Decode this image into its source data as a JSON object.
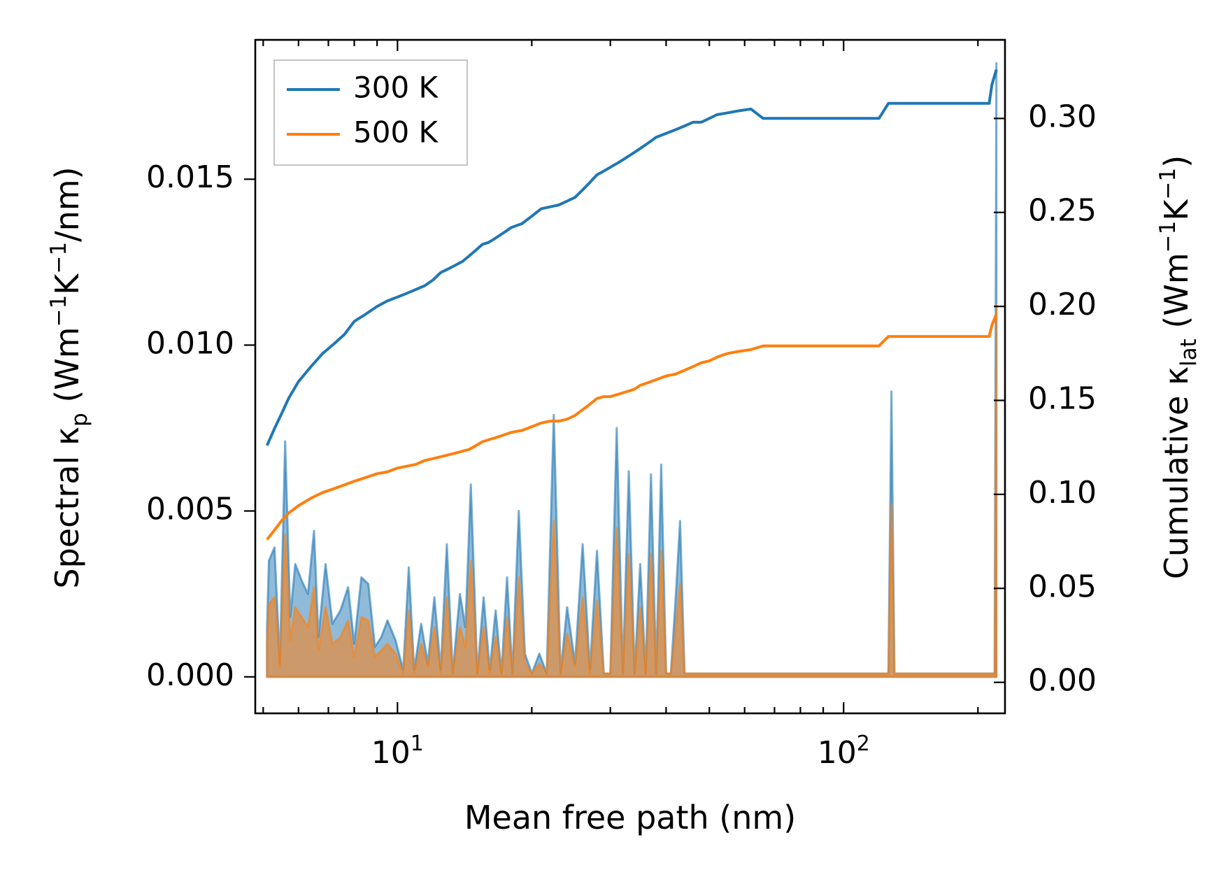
{
  "chart_data": {
    "type": "line",
    "xlabel": "Mean free path (nm)",
    "ylabel_left": {
      "prefix": "Spectral κ",
      "sub": "p",
      "units_open": " (Wm",
      "exp1": "−1",
      "units_mid": "K",
      "exp2": "−1",
      "units_close": "/nm)"
    },
    "ylabel_right": {
      "prefix": "Cumulative κ",
      "sub": "lat",
      "units_open": " (Wm",
      "exp1": "−1",
      "units_mid": "K",
      "exp2": "−1",
      "units_close": ")"
    },
    "xscale": "log",
    "xlim": [
      4.8,
      230
    ],
    "ylim_left": [
      -0.0011,
      0.0192
    ],
    "ylim_right": [
      -0.0165,
      0.3418
    ],
    "x_ticks": [
      {
        "value": 10,
        "base": "10",
        "exp": "1"
      },
      {
        "value": 100,
        "base": "10",
        "exp": "2"
      }
    ],
    "y_left_ticks": [
      "0.000",
      "0.005",
      "0.010",
      "0.015"
    ],
    "y_left_tick_values": [
      0,
      0.005,
      0.01,
      0.015
    ],
    "y_right_ticks": [
      "0.00",
      "0.05",
      "0.10",
      "0.15",
      "0.20",
      "0.25",
      "0.30"
    ],
    "y_right_tick_values": [
      0,
      0.05,
      0.1,
      0.15,
      0.2,
      0.25,
      0.3
    ],
    "legend": {
      "placement": "upper-left",
      "entries": [
        "300 K",
        "500 K"
      ]
    },
    "colors": {
      "300K": "#1f77b4",
      "500K": "#ff7f0e",
      "fill_300K": "#1f77b4",
      "fill_500K": "#ff7f0e"
    },
    "series_spectral": [
      {
        "name": "300 K",
        "axis": "left",
        "x": [
          5.1,
          5.15,
          5.3,
          5.45,
          5.6,
          5.75,
          5.9,
          6.1,
          6.3,
          6.5,
          6.65,
          6.9,
          7.15,
          7.45,
          7.75,
          8.0,
          8.3,
          8.6,
          8.9,
          9.2,
          9.5,
          9.9,
          10.3,
          10.6,
          10.9,
          11.3,
          11.7,
          12.1,
          12.5,
          12.9,
          13.3,
          13.8,
          14.2,
          14.6,
          15.1,
          15.6,
          16.1,
          16.6,
          17.1,
          17.6,
          18.1,
          18.7,
          19.3,
          20.0,
          20.8,
          21.6,
          22.4,
          23.2,
          24.0,
          25.0,
          26.0,
          27.0,
          28.0,
          29.0,
          30.0,
          31.0,
          32.0,
          33.0,
          34.0,
          35.0,
          36.0,
          37.0,
          38.0,
          39.0,
          40.0,
          41.0,
          42.0,
          43.0,
          44.0,
          45.0,
          46.0,
          47.0,
          48.0,
          49.0,
          50.0,
          51.0,
          52.0,
          53.0,
          55.0,
          57.0,
          59.0,
          61.0,
          63.0,
          65.0,
          67.0,
          70.0,
          80.0,
          100.0,
          120.0,
          126.0,
          128.0,
          130.0,
          135.0,
          150.0,
          180.0,
          200.0,
          212.0,
          215.0,
          218.0,
          220.0
        ],
        "y": [
          0.0015,
          0.0035,
          0.0039,
          0.0004,
          0.0071,
          0.0018,
          0.0034,
          0.0029,
          0.0025,
          0.0044,
          0.0012,
          0.0034,
          0.0016,
          0.002,
          0.0027,
          0.001,
          0.003,
          0.0028,
          0.0009,
          0.0012,
          0.0017,
          0.0011,
          0.0002,
          0.0033,
          0.0002,
          0.0016,
          0.0004,
          0.0024,
          0.0002,
          0.004,
          0.0001,
          0.0025,
          0.0015,
          0.0058,
          0.0001,
          0.0024,
          0.0002,
          0.002,
          0.0001,
          0.003,
          0.0001,
          0.005,
          0.0007,
          0.0001,
          0.0007,
          0.0001,
          0.0079,
          0.0001,
          0.0021,
          0.0004,
          0.004,
          0.0002,
          0.0038,
          0.0001,
          0.0001,
          0.0075,
          0.0001,
          0.0062,
          0.0001,
          0.0034,
          0.0001,
          0.0061,
          0.0001,
          0.0064,
          0.0001,
          0.0001,
          0.0023,
          0.0047,
          0.0001,
          0.0001,
          0.0001,
          0.0001,
          0.0001,
          0.0001,
          0.0001,
          0.0001,
          0.0001,
          0.0001,
          0.0001,
          0.0001,
          0.0001,
          0.0001,
          0.0001,
          0.0001,
          0.0001,
          0.0001,
          0.0001,
          0.0001,
          0.0001,
          0.0001,
          0.0086,
          0.0001,
          0.0001,
          0.0001,
          0.0001,
          0.0001,
          0.0001,
          0.0001,
          0.0001,
          0.0185
        ]
      },
      {
        "name": "500 K",
        "axis": "left",
        "x": [
          5.1,
          5.15,
          5.3,
          5.45,
          5.6,
          5.75,
          5.9,
          6.1,
          6.3,
          6.5,
          6.65,
          6.9,
          7.15,
          7.45,
          7.75,
          8.0,
          8.3,
          8.6,
          8.9,
          9.2,
          9.5,
          9.9,
          10.3,
          10.6,
          10.9,
          11.3,
          11.7,
          12.1,
          12.5,
          12.9,
          13.3,
          13.8,
          14.2,
          14.6,
          15.1,
          15.6,
          16.1,
          16.6,
          17.1,
          17.6,
          18.1,
          18.7,
          19.3,
          20.0,
          20.8,
          21.6,
          22.4,
          23.2,
          24.0,
          25.0,
          26.0,
          27.0,
          28.0,
          29.0,
          30.0,
          31.0,
          32.0,
          33.0,
          34.0,
          35.0,
          36.0,
          37.0,
          38.0,
          39.0,
          40.0,
          41.0,
          42.0,
          43.0,
          44.0,
          45.0,
          46.0,
          47.0,
          48.0,
          49.0,
          50.0,
          51.0,
          52.0,
          53.0,
          55.0,
          57.0,
          59.0,
          61.0,
          63.0,
          65.0,
          67.0,
          70.0,
          80.0,
          100.0,
          120.0,
          126.0,
          128.0,
          130.0,
          135.0,
          150.0,
          180.0,
          200.0,
          212.0,
          215.0,
          218.0,
          220.0
        ],
        "y": [
          0.001,
          0.0022,
          0.0024,
          0.0003,
          0.0043,
          0.0011,
          0.0021,
          0.0018,
          0.0015,
          0.0027,
          0.0008,
          0.0021,
          0.001,
          0.0012,
          0.0017,
          0.0006,
          0.0018,
          0.0017,
          0.0006,
          0.0008,
          0.001,
          0.0007,
          0.0001,
          0.002,
          0.0001,
          0.001,
          0.0003,
          0.0015,
          0.0001,
          0.0024,
          0.0001,
          0.0015,
          0.0009,
          0.0035,
          0.0001,
          0.0015,
          0.0001,
          0.0012,
          0.0001,
          0.0018,
          0.0001,
          0.003,
          0.0004,
          0.0001,
          0.0004,
          0.0001,
          0.0047,
          0.0001,
          0.0013,
          0.0003,
          0.0024,
          0.0001,
          0.0023,
          0.0001,
          0.0001,
          0.0045,
          0.0001,
          0.0037,
          0.0001,
          0.0021,
          0.0001,
          0.0037,
          0.0001,
          0.0038,
          0.0001,
          0.0001,
          0.0014,
          0.0028,
          0.0001,
          0.0001,
          0.0001,
          0.0001,
          0.0001,
          0.0001,
          0.0001,
          0.0001,
          0.0001,
          0.0001,
          0.0001,
          0.0001,
          0.0001,
          0.0001,
          0.0001,
          0.0001,
          0.0001,
          0.0001,
          0.0001,
          0.0001,
          0.0001,
          0.0001,
          0.0052,
          0.0001,
          0.0001,
          0.0001,
          0.0001,
          0.0001,
          0.0001,
          0.0001,
          0.0001,
          0.0112
        ]
      }
    ],
    "series_cumulative": [
      {
        "name": "300 K",
        "axis": "right",
        "x": [
          5.1,
          5.3,
          5.5,
          5.7,
          6.0,
          6.4,
          6.8,
          7.2,
          7.6,
          8.0,
          8.5,
          9.0,
          9.5,
          10.0,
          10.5,
          11.0,
          11.5,
          12.0,
          12.5,
          13.0,
          13.5,
          14.0,
          14.5,
          15.0,
          15.5,
          16.0,
          16.5,
          17.0,
          17.5,
          18.0,
          19.0,
          20.0,
          21.0,
          22.0,
          23.0,
          24.0,
          25.0,
          26.0,
          27.0,
          28.0,
          29.0,
          30.0,
          31.0,
          32.0,
          33.0,
          34.0,
          35.0,
          36.0,
          37.0,
          38.0,
          40.0,
          42.0,
          44.0,
          46.0,
          48.0,
          50.0,
          52.0,
          55.0,
          58.0,
          62.0,
          66.0,
          70.0,
          80.0,
          100.0,
          120.0,
          126.0,
          130.0,
          140.0,
          160.0,
          180.0,
          200.0,
          212.0,
          215.0,
          220.0
        ],
        "y": [
          0.126,
          0.135,
          0.143,
          0.151,
          0.16,
          0.168,
          0.175,
          0.18,
          0.185,
          0.192,
          0.196,
          0.2,
          0.203,
          0.205,
          0.207,
          0.209,
          0.211,
          0.214,
          0.218,
          0.22,
          0.222,
          0.224,
          0.227,
          0.23,
          0.233,
          0.234,
          0.236,
          0.238,
          0.24,
          0.242,
          0.244,
          0.248,
          0.252,
          0.253,
          0.254,
          0.256,
          0.258,
          0.262,
          0.266,
          0.27,
          0.272,
          0.274,
          0.276,
          0.278,
          0.28,
          0.282,
          0.284,
          0.286,
          0.288,
          0.29,
          0.292,
          0.294,
          0.296,
          0.298,
          0.298,
          0.3,
          0.302,
          0.303,
          0.304,
          0.305,
          0.3,
          0.3,
          0.3,
          0.3,
          0.3,
          0.308,
          0.308,
          0.308,
          0.308,
          0.308,
          0.308,
          0.308,
          0.318,
          0.326
        ]
      },
      {
        "name": "500 K",
        "axis": "right",
        "x": [
          5.1,
          5.3,
          5.5,
          5.7,
          6.0,
          6.4,
          6.8,
          7.2,
          7.6,
          8.0,
          8.5,
          9.0,
          9.5,
          10.0,
          10.5,
          11.0,
          11.5,
          12.0,
          12.5,
          13.0,
          13.5,
          14.0,
          14.5,
          15.0,
          15.5,
          16.0,
          16.5,
          17.0,
          17.5,
          18.0,
          19.0,
          20.0,
          21.0,
          22.0,
          23.0,
          24.0,
          25.0,
          26.0,
          27.0,
          28.0,
          29.0,
          30.0,
          31.0,
          32.0,
          33.0,
          34.0,
          35.0,
          36.0,
          37.0,
          38.0,
          40.0,
          42.0,
          44.0,
          46.0,
          48.0,
          50.0,
          52.0,
          55.0,
          58.0,
          62.0,
          66.0,
          70.0,
          80.0,
          100.0,
          120.0,
          126.0,
          130.0,
          140.0,
          160.0,
          180.0,
          200.0,
          212.0,
          215.0,
          220.0
        ],
        "y": [
          0.076,
          0.081,
          0.086,
          0.09,
          0.094,
          0.098,
          0.101,
          0.103,
          0.105,
          0.107,
          0.109,
          0.111,
          0.112,
          0.114,
          0.115,
          0.116,
          0.118,
          0.119,
          0.12,
          0.121,
          0.122,
          0.123,
          0.124,
          0.126,
          0.128,
          0.129,
          0.13,
          0.131,
          0.132,
          0.133,
          0.134,
          0.136,
          0.138,
          0.139,
          0.139,
          0.14,
          0.142,
          0.145,
          0.148,
          0.151,
          0.152,
          0.152,
          0.153,
          0.154,
          0.155,
          0.156,
          0.158,
          0.159,
          0.16,
          0.161,
          0.163,
          0.164,
          0.166,
          0.168,
          0.17,
          0.171,
          0.173,
          0.175,
          0.176,
          0.177,
          0.179,
          0.179,
          0.179,
          0.179,
          0.179,
          0.184,
          0.184,
          0.184,
          0.184,
          0.184,
          0.184,
          0.184,
          0.19,
          0.196
        ]
      }
    ]
  }
}
